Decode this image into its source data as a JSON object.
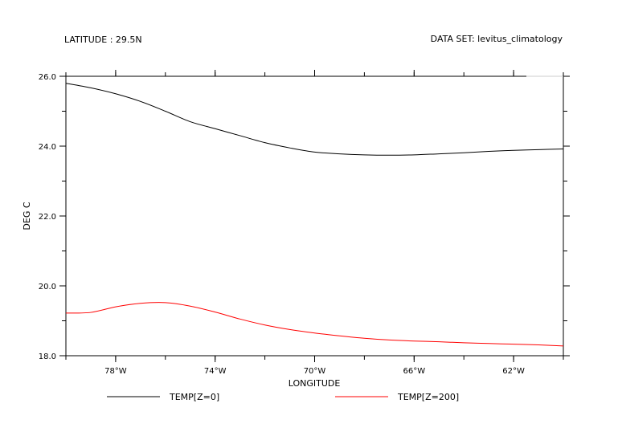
{
  "header": {
    "left_label": "LATITUDE : 29.5N",
    "right_label": "DATA SET: levitus_climatology"
  },
  "chart_data": {
    "type": "line",
    "title": "",
    "xlabel": "LONGITUDE",
    "ylabel": "DEG C",
    "xlim": [
      -80,
      -60
    ],
    "ylim": [
      18.0,
      26.0
    ],
    "x_ticks": [
      {
        "value": -78,
        "label": "78°W"
      },
      {
        "value": -74,
        "label": "74°W"
      },
      {
        "value": -70,
        "label": "70°W"
      },
      {
        "value": -66,
        "label": "66°W"
      },
      {
        "value": -62,
        "label": "62°W"
      }
    ],
    "y_ticks": [
      {
        "value": 18.0,
        "label": "18.0"
      },
      {
        "value": 20.0,
        "label": "20.0"
      },
      {
        "value": 22.0,
        "label": "22.0"
      },
      {
        "value": 24.0,
        "label": "24.0"
      },
      {
        "value": 26.0,
        "label": "26.0"
      }
    ],
    "grid": false,
    "legend_position": "bottom",
    "series": [
      {
        "name": "TEMP[Z=0]",
        "color": "#000000",
        "x": [
          -80,
          -79,
          -78,
          -77,
          -76,
          -75,
          -74,
          -73,
          -72,
          -71,
          -70,
          -69,
          -68,
          -67,
          -66,
          -65,
          -64,
          -63,
          -62,
          -61,
          -60
        ],
        "y": [
          25.8,
          25.67,
          25.5,
          25.28,
          25.0,
          24.7,
          24.5,
          24.3,
          24.1,
          23.95,
          23.83,
          23.78,
          23.75,
          23.74,
          23.75,
          23.78,
          23.81,
          23.85,
          23.88,
          23.9,
          23.92
        ]
      },
      {
        "name": "TEMP[Z=200]",
        "color": "#ff0000",
        "x": [
          -80,
          -79,
          -78,
          -77,
          -76,
          -75,
          -74,
          -73,
          -72,
          -71,
          -70,
          -69,
          -68,
          -67,
          -66,
          -65,
          -64,
          -63,
          -62,
          -61,
          -60
        ],
        "y": [
          19.22,
          19.24,
          19.4,
          19.5,
          19.52,
          19.42,
          19.25,
          19.05,
          18.88,
          18.75,
          18.65,
          18.57,
          18.5,
          18.45,
          18.42,
          18.4,
          18.37,
          18.35,
          18.33,
          18.31,
          18.28
        ]
      }
    ]
  }
}
